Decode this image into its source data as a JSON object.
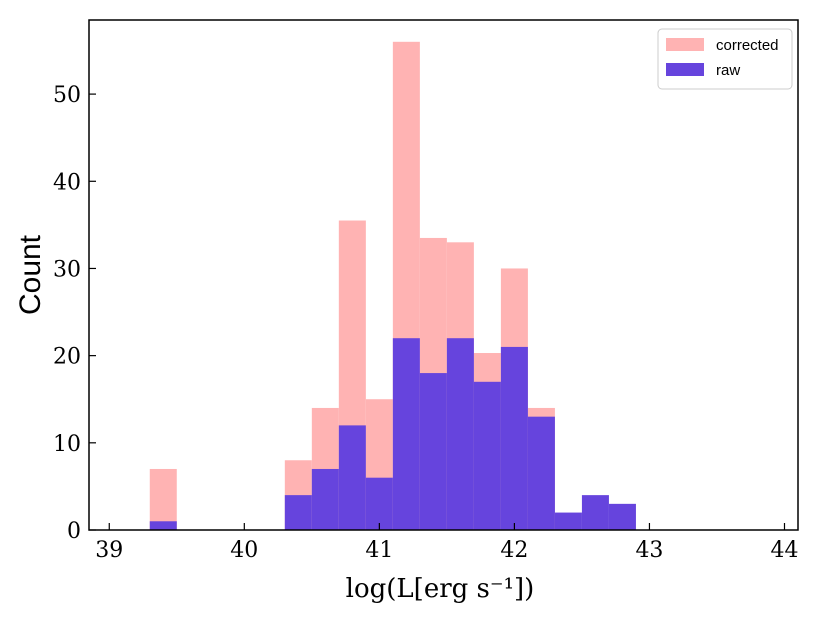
{
  "chart_data": {
    "type": "bar",
    "xlabel": "log(L[erg s⁻¹])",
    "ylabel": "Count",
    "xlim": [
      38.85,
      44.1
    ],
    "ylim": [
      0,
      58.5
    ],
    "xticks": [
      39,
      40,
      41,
      42,
      43,
      44
    ],
    "yticks": [
      0,
      10,
      20,
      30,
      40,
      50
    ],
    "legend_position": "top-right",
    "grid": false,
    "bin_width": 0.2,
    "bin_starts": [
      39.3,
      40.3,
      40.5,
      40.7,
      40.9,
      41.1,
      41.3,
      41.5,
      41.7,
      41.9,
      42.1,
      42.3,
      42.5,
      42.7
    ],
    "series": [
      {
        "name": "corrected",
        "color": "#ffb3b3",
        "values": [
          7,
          8,
          14,
          35.5,
          15,
          56,
          33.5,
          33,
          20.3,
          30,
          14,
          0,
          0,
          0
        ]
      },
      {
        "name": "raw",
        "color": "#6644dd",
        "values": [
          1,
          4,
          7,
          12,
          6,
          22,
          18,
          22,
          17,
          21,
          13,
          2,
          4,
          3
        ]
      }
    ]
  }
}
